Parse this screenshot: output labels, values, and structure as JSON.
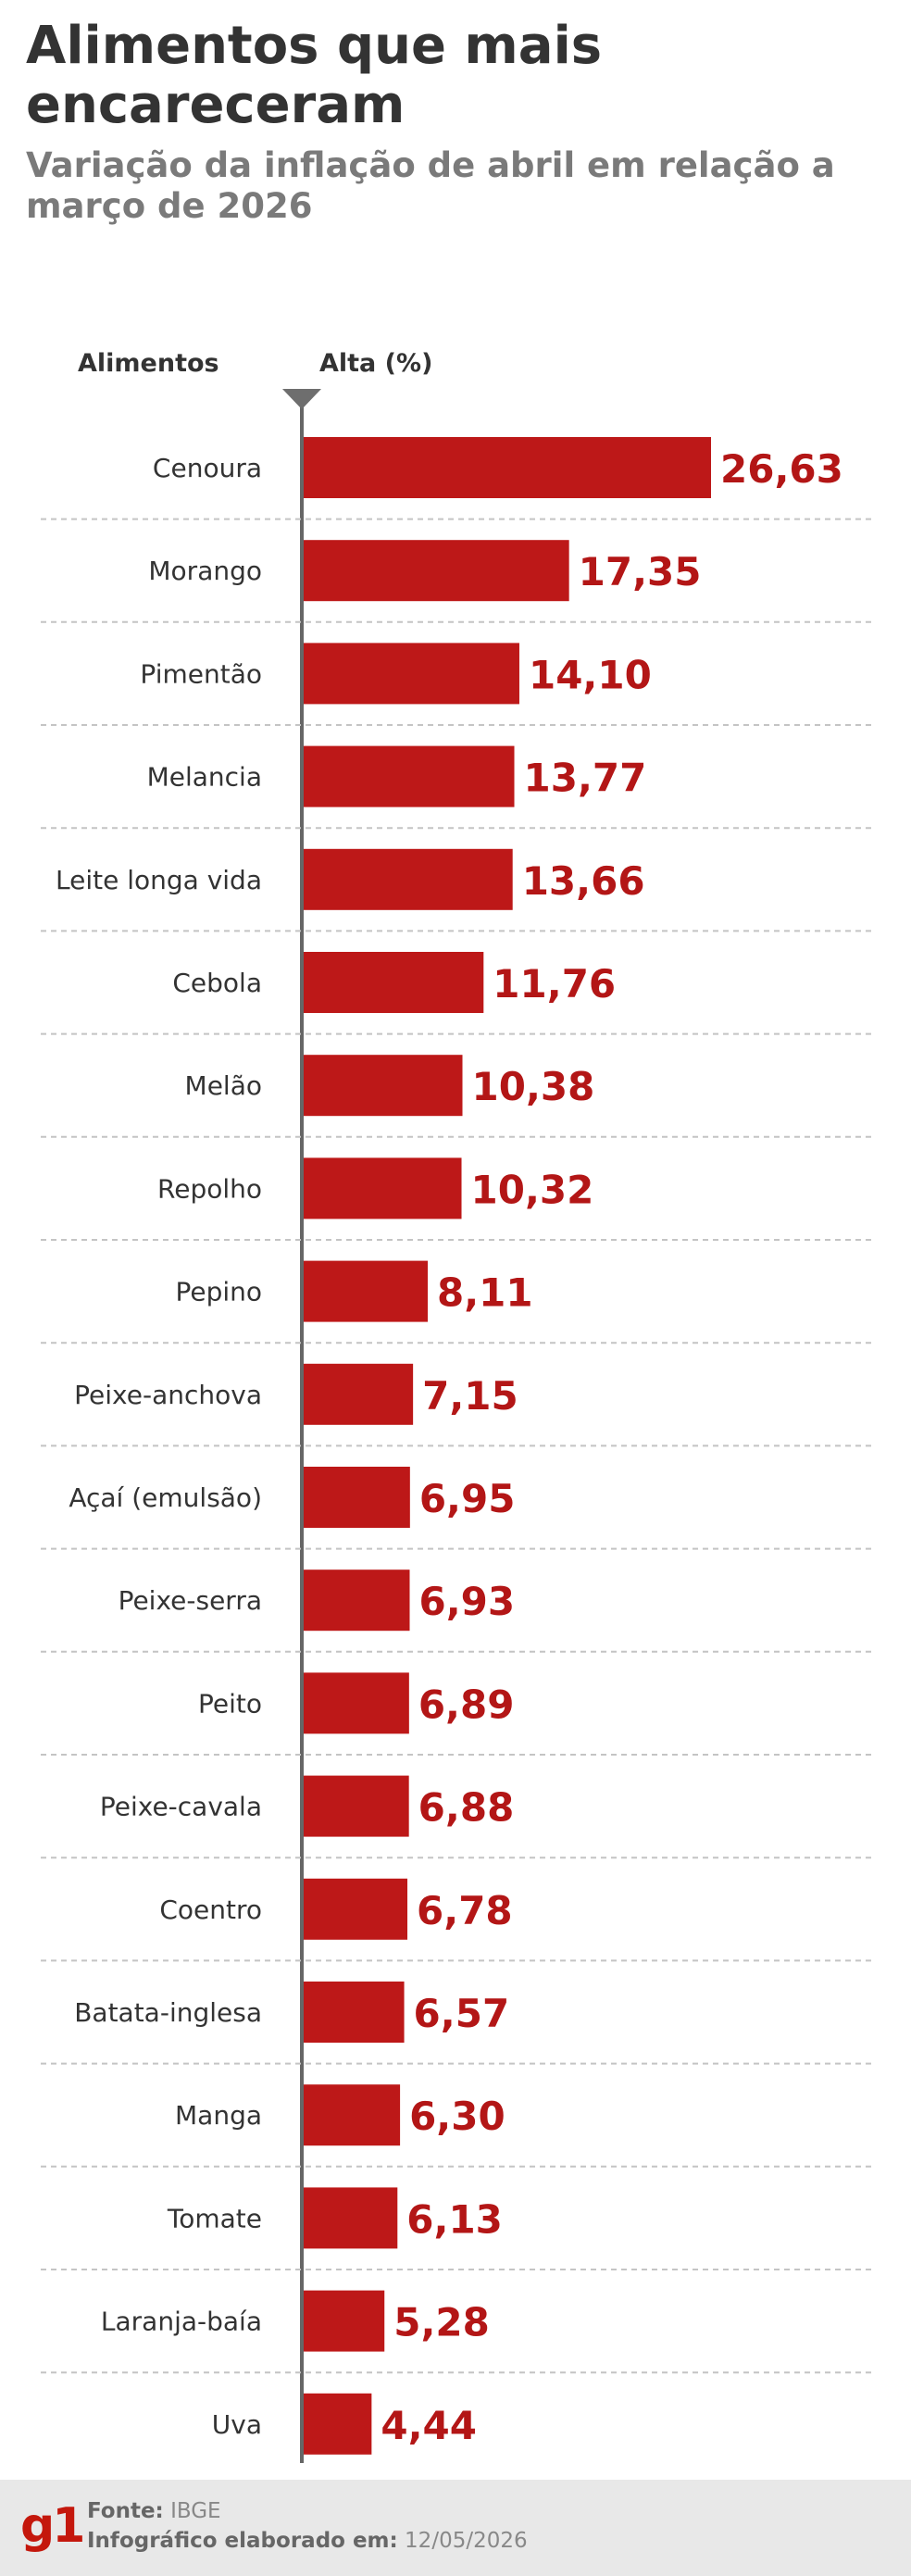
{
  "title": "Alimentos que mais encareceram",
  "subtitle": "Variação da inflação de abril em relação a março de 2026",
  "footer": {
    "logo": "g1",
    "source_label": "Fonte:",
    "source_value": "IBGE",
    "date_label": "Infográfico elaborado em:",
    "date_value": "12/05/2026"
  },
  "colors": {
    "bar": "#bd1818",
    "value_text": "#b31616",
    "axis": "#666666",
    "divider": "#c4c4c4"
  },
  "chart_data": {
    "type": "bar",
    "orientation": "horizontal",
    "category_header": "Alimentos",
    "value_header": "Alta (%)",
    "categories": [
      "Cenoura",
      "Morango",
      "Pimentão",
      "Melancia",
      "Leite longa vida",
      "Cebola",
      "Melão",
      "Repolho",
      "Pepino",
      "Peixe-anchova",
      "Açaí (emulsão)",
      "Peixe-serra",
      "Peito",
      "Peixe-cavala",
      "Coentro",
      "Batata-inglesa",
      "Manga",
      "Tomate",
      "Laranja-baía",
      "Uva"
    ],
    "values": [
      26.63,
      17.35,
      14.1,
      13.77,
      13.66,
      11.76,
      10.38,
      10.32,
      8.11,
      7.15,
      6.95,
      6.93,
      6.89,
      6.88,
      6.78,
      6.57,
      6.3,
      6.13,
      5.28,
      4.44
    ],
    "value_labels": [
      "26,63",
      "17,35",
      "14,10",
      "13,77",
      "13,66",
      "11,76",
      "10,38",
      "10,32",
      "8,11",
      "7,15",
      "6,95",
      "6,93",
      "6,89",
      "6,88",
      "6,78",
      "6,57",
      "6,30",
      "6,13",
      "5,28",
      "4,44"
    ],
    "xlim": [
      0,
      26.63
    ],
    "grid": false,
    "legend": false
  }
}
